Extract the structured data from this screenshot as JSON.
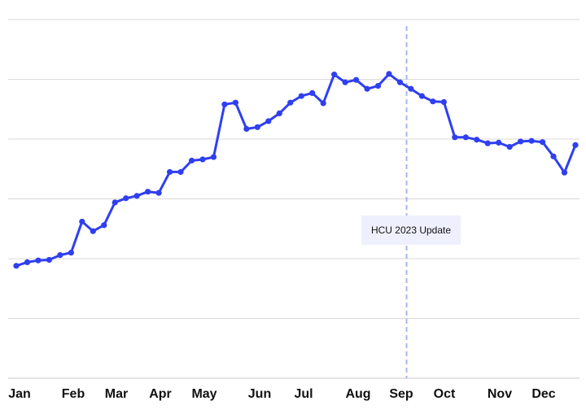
{
  "chart_data": {
    "type": "line",
    "title": "",
    "xlabel": "",
    "ylabel": "",
    "x_ticks": [
      "Jan",
      "Feb",
      "Mar",
      "Apr",
      "May",
      "Jun",
      "Jul",
      "Aug",
      "Sep",
      "Oct",
      "Nov",
      "Dec"
    ],
    "x_range": [
      0,
      51
    ],
    "ylim": [
      0,
      60
    ],
    "y_gridlines": [
      10,
      20,
      30,
      40,
      50,
      60
    ],
    "y_tick_labels_visible": false,
    "grid": true,
    "legend": "none",
    "series": [
      {
        "color": "#2f3ff0",
        "x": [
          0,
          1,
          2,
          3,
          4,
          5,
          6,
          7,
          8,
          9,
          10,
          11,
          12,
          13,
          14,
          15,
          16,
          17,
          18,
          19,
          20,
          21,
          22,
          23,
          24,
          25,
          26,
          27,
          28,
          29,
          30,
          31,
          32,
          33,
          34,
          35,
          36,
          37,
          38,
          39,
          40,
          41,
          42,
          43,
          44,
          45,
          46,
          47,
          48,
          49,
          50,
          51
        ],
        "values": [
          18.8,
          19.4,
          19.7,
          19.8,
          20.6,
          21.0,
          26.2,
          24.6,
          25.6,
          29.4,
          30.1,
          30.5,
          31.2,
          31.0,
          34.5,
          34.5,
          36.4,
          36.6,
          37.0,
          45.8,
          46.1,
          41.7,
          42.0,
          43.0,
          44.3,
          46.1,
          47.2,
          47.7,
          46.0,
          50.8,
          49.5,
          49.9,
          48.4,
          48.9,
          50.9,
          49.5,
          48.4,
          47.2,
          46.3,
          46.2,
          40.3,
          40.3,
          39.9,
          39.3,
          39.4,
          38.7,
          39.6,
          39.7,
          39.5,
          37.1,
          34.4,
          39.0
        ]
      }
    ],
    "annotation": {
      "label": "HCU 2023 Update",
      "x": 35.6,
      "line_color": "#a9b4f7",
      "box_color": "#eef0fd"
    }
  }
}
